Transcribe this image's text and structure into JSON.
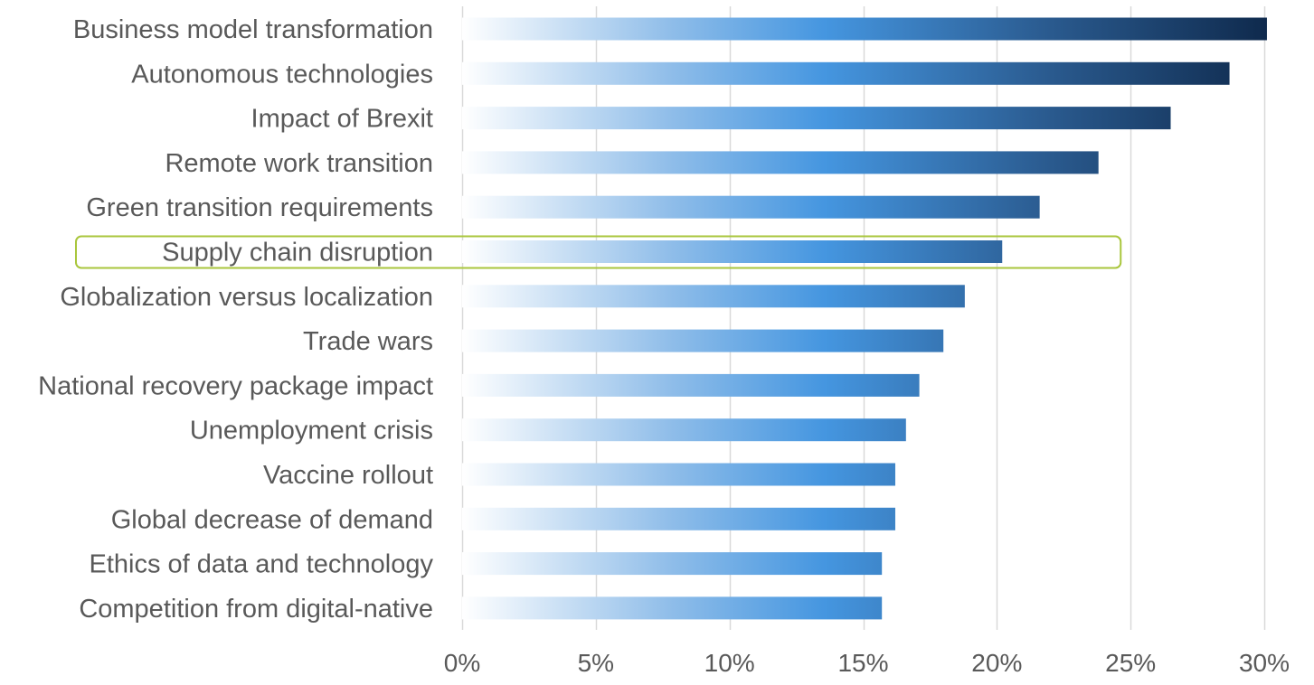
{
  "chart_data": {
    "type": "bar",
    "orientation": "horizontal",
    "categories": [
      "Business model transformation",
      "Autonomous technologies",
      "Impact of Brexit",
      "Remote work transition",
      "Green transition requirements",
      "Supply chain disruption",
      "Globalization versus localization",
      "Trade wars",
      "National recovery package impact",
      "Unemployment crisis",
      "Vaccine rollout",
      "Global decrease of demand",
      "Ethics of data and technology",
      "Competition from digital-native"
    ],
    "values": [
      30.1,
      28.7,
      26.5,
      23.8,
      21.6,
      20.2,
      18.8,
      18.0,
      17.1,
      16.6,
      16.2,
      16.2,
      15.7,
      15.7
    ],
    "value_format": "percent",
    "xlim": [
      0,
      30
    ],
    "xticks": [
      0,
      5,
      10,
      15,
      20,
      25,
      30
    ],
    "xtick_labels": [
      "0%",
      "5%",
      "10%",
      "15%",
      "20%",
      "25%",
      "30%"
    ],
    "highlighted_category": "Supply chain disruption",
    "grid": "vertical",
    "legend": "none"
  },
  "colors": {
    "bar_gradient": [
      "#ffffff",
      "#8fbde9",
      "#4596e0",
      "#2b5c91",
      "#0f2a4d"
    ],
    "highlight_outline": "#a9c63c",
    "gridline": "#d9d9d9",
    "text": "#595959"
  }
}
